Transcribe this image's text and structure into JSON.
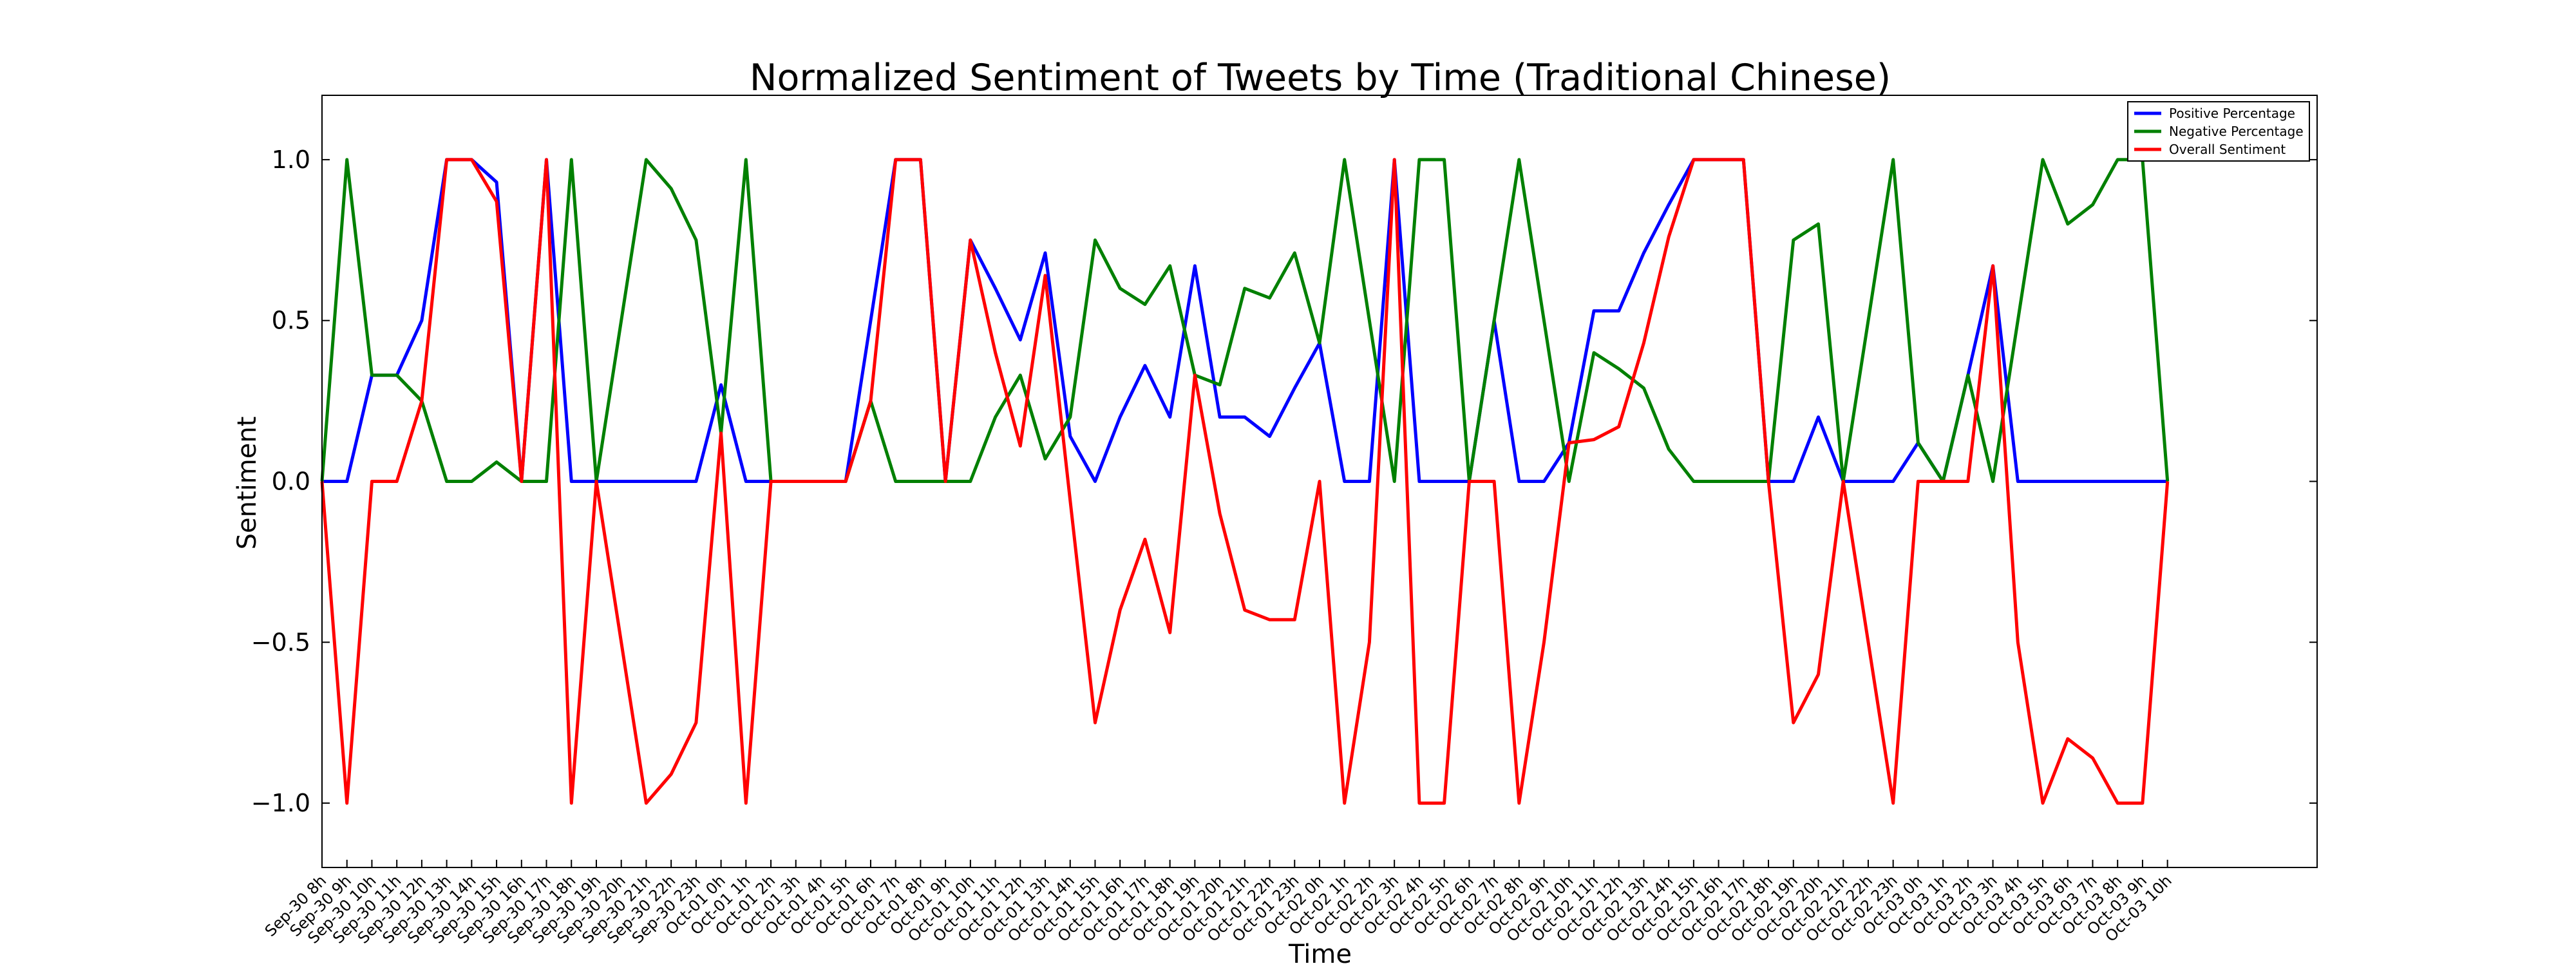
{
  "chart_data": {
    "type": "line",
    "title": "Normalized Sentiment of Tweets by Time (Traditional Chinese)",
    "xlabel": "Time",
    "ylabel": "Sentiment",
    "categories": [
      "Sep-30 8h",
      "Sep-30 9h",
      "Sep-30 10h",
      "Sep-30 11h",
      "Sep-30 12h",
      "Sep-30 13h",
      "Sep-30 14h",
      "Sep-30 15h",
      "Sep-30 16h",
      "Sep-30 17h",
      "Sep-30 18h",
      "Sep-30 19h",
      "Sep-30 20h",
      "Sep-30 21h",
      "Sep-30 22h",
      "Sep-30 23h",
      "Oct-01 0h",
      "Oct-01 1h",
      "Oct-01 2h",
      "Oct-01 3h",
      "Oct-01 4h",
      "Oct-01 5h",
      "Oct-01 6h",
      "Oct-01 7h",
      "Oct-01 8h",
      "Oct-01 9h",
      "Oct-01 10h",
      "Oct-01 11h",
      "Oct-01 12h",
      "Oct-01 13h",
      "Oct-01 14h",
      "Oct-01 15h",
      "Oct-01 16h",
      "Oct-01 17h",
      "Oct-01 18h",
      "Oct-01 19h",
      "Oct-01 20h",
      "Oct-01 21h",
      "Oct-01 22h",
      "Oct-01 23h",
      "Oct-02 0h",
      "Oct-02 1h",
      "Oct-02 2h",
      "Oct-02 3h",
      "Oct-02 4h",
      "Oct-02 5h",
      "Oct-02 6h",
      "Oct-02 7h",
      "Oct-02 8h",
      "Oct-02 9h",
      "Oct-02 10h",
      "Oct-02 11h",
      "Oct-02 12h",
      "Oct-02 13h",
      "Oct-02 14h",
      "Oct-02 15h",
      "Oct-02 16h",
      "Oct-02 17h",
      "Oct-02 18h",
      "Oct-02 19h",
      "Oct-02 20h",
      "Oct-02 21h",
      "Oct-02 22h",
      "Oct-02 23h",
      "Oct-03 0h",
      "Oct-03 1h",
      "Oct-03 2h",
      "Oct-03 3h",
      "Oct-03 4h",
      "Oct-03 5h",
      "Oct-03 6h",
      "Oct-03 7h",
      "Oct-03 8h",
      "Oct-03 9h",
      "Oct-03 10h"
    ],
    "series": [
      {
        "name": "Positive Percentage",
        "color": "#0000ff",
        "values": [
          0,
          0,
          0.33,
          0.33,
          0.5,
          1,
          1,
          0.93,
          0,
          1,
          0,
          0,
          0,
          0,
          0,
          0,
          0.3,
          0,
          0,
          0,
          0,
          0,
          0.5,
          1,
          1,
          0,
          0.75,
          0.6,
          0.44,
          0.71,
          0.14,
          0,
          0.2,
          0.36,
          0.2,
          0.67,
          0.2,
          0.2,
          0.14,
          0.29,
          0.43,
          0,
          0,
          1,
          0,
          0,
          0,
          0.5,
          0,
          0,
          0.12,
          0.53,
          0.53,
          0.71,
          0.86,
          1,
          1,
          1,
          0,
          0,
          0.2,
          0,
          0,
          0,
          0.12,
          0,
          0.33,
          0.67,
          0,
          0,
          0,
          0,
          0,
          0,
          0
        ]
      },
      {
        "name": "Negative Percentage",
        "color": "#008000",
        "values": [
          0,
          1,
          0.33,
          0.33,
          0.25,
          0,
          0,
          0.06,
          0,
          0,
          1,
          0,
          0.5,
          1,
          0.91,
          0.75,
          0.15,
          1,
          0,
          0,
          0,
          0,
          0.25,
          0,
          0,
          0,
          0,
          0.2,
          0.33,
          0.07,
          0.2,
          0.75,
          0.6,
          0.55,
          0.67,
          0.33,
          0.3,
          0.6,
          0.57,
          0.71,
          0.43,
          1,
          0.5,
          0,
          1,
          1,
          0,
          0.5,
          1,
          0.5,
          0,
          0.4,
          0.35,
          0.29,
          0.1,
          0,
          0,
          0,
          0,
          0.75,
          0.8,
          0,
          0.5,
          1,
          0.12,
          0,
          0.33,
          0,
          0.5,
          1,
          0.8,
          0.86,
          1,
          1,
          0
        ]
      },
      {
        "name": "Overall Sentiment",
        "color": "#ff0000",
        "values": [
          0,
          -1,
          0,
          0,
          0.25,
          1,
          1,
          0.87,
          0,
          1,
          -1,
          0,
          -0.5,
          -1,
          -0.91,
          -0.75,
          0.15,
          -1,
          0,
          0,
          0,
          0,
          0.25,
          1,
          1,
          0,
          0.75,
          0.4,
          0.11,
          0.64,
          -0.06,
          -0.75,
          -0.4,
          -0.18,
          -0.47,
          0.33,
          -0.1,
          -0.4,
          -0.43,
          -0.43,
          0,
          -1,
          -0.5,
          1,
          -1,
          -1,
          0,
          0,
          -1,
          -0.5,
          0.12,
          0.13,
          0.17,
          0.43,
          0.76,
          1,
          1,
          1,
          0,
          -0.75,
          -0.6,
          0,
          -0.5,
          -1,
          0,
          0,
          0,
          0.67,
          -0.5,
          -1,
          -0.8,
          -0.86,
          -1,
          -1,
          0
        ]
      }
    ],
    "ylim": [
      -1.2,
      1.2
    ],
    "yticks": [
      {
        "value": -1,
        "label": "−1.0"
      },
      {
        "value": -0.5,
        "label": "−0.5"
      },
      {
        "value": 0,
        "label": "0.0"
      },
      {
        "value": 0.5,
        "label": "0.5"
      },
      {
        "value": 1,
        "label": "1.0"
      }
    ],
    "legend": "upper right"
  }
}
